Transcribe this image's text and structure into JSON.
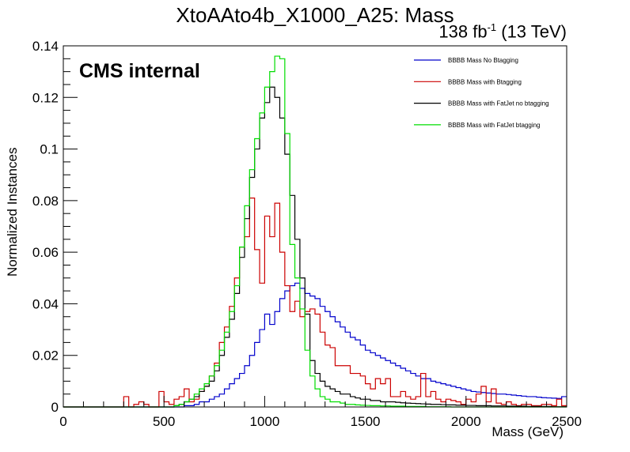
{
  "chart_data": {
    "type": "line",
    "title": "XtoAAto4b_X1000_A25: Mass",
    "lumi": {
      "value": "138 fb",
      "exp": "-1",
      "suffix": "(13 TeV)"
    },
    "label": "CMS internal",
    "xlabel": "Mass (GeV)",
    "ylabel": "Normalized Instances",
    "xlim": [
      0,
      2500
    ],
    "ylim": [
      0,
      0.14
    ],
    "xticks": [
      0,
      500,
      1000,
      1500,
      2000,
      2500
    ],
    "yticks": [
      0,
      0.02,
      0.04,
      0.06,
      0.08,
      0.1,
      0.12,
      0.14
    ],
    "ytick_labels": [
      "0",
      "0.02",
      "0.04",
      "0.06",
      "0.08",
      "0.1",
      "0.12",
      "0.14"
    ],
    "bin_width": 25,
    "x_start": 0,
    "series": [
      {
        "name": "BBBB Mass No Btagging",
        "color": "#0000cc",
        "values": [
          0,
          0,
          0,
          0,
          0,
          0,
          0,
          0,
          0,
          0,
          0,
          0,
          0,
          0,
          0,
          0,
          0,
          0,
          0,
          0,
          0,
          0,
          0,
          0,
          0.0005,
          0.0005,
          0.001,
          0.002,
          0.002,
          0.003,
          0.004,
          0.005,
          0.007,
          0.009,
          0.011,
          0.013,
          0.016,
          0.02,
          0.025,
          0.03,
          0.036,
          0.032,
          0.037,
          0.042,
          0.045,
          0.047,
          0.048,
          0.046,
          0.044,
          0.043,
          0.042,
          0.039,
          0.037,
          0.035,
          0.033,
          0.031,
          0.029,
          0.027,
          0.026,
          0.024,
          0.022,
          0.021,
          0.02,
          0.019,
          0.018,
          0.017,
          0.016,
          0.015,
          0.014,
          0.013,
          0.012,
          0.011,
          0.011,
          0.01,
          0.0095,
          0.009,
          0.0085,
          0.008,
          0.0075,
          0.007,
          0.0065,
          0.006,
          0.0058,
          0.0056,
          0.0054,
          0.0052,
          0.005,
          0.005,
          0.0048,
          0.0046,
          0.0044,
          0.0042,
          0.004,
          0.004,
          0.0038,
          0.0036,
          0.0035,
          0.0034,
          0.0033,
          0.004
        ]
      },
      {
        "name": "BBBB Mass with Btagging",
        "color": "#cc0000",
        "values": [
          0,
          0,
          0,
          0,
          0,
          0,
          0,
          0,
          0,
          0,
          0,
          0,
          0.004,
          0,
          0.001,
          0.002,
          0.001,
          0,
          0,
          0.006,
          0.002,
          0.001,
          0.003,
          0.004,
          0.007,
          0.002,
          0.003,
          0.006,
          0.008,
          0.012,
          0.017,
          0.025,
          0.031,
          0.039,
          0.05,
          0.062,
          0.066,
          0.081,
          0.061,
          0.048,
          0.074,
          0.066,
          0.079,
          0.06,
          0.047,
          0.037,
          0.041,
          0.035,
          0.037,
          0.038,
          0.036,
          0.029,
          0.024,
          0.023,
          0.016,
          0.016,
          0.016,
          0.013,
          0.013,
          0.012,
          0.009,
          0.007,
          0.011,
          0.009,
          0.011,
          0.004,
          0.004,
          0.006,
          0.004,
          0.003,
          0.004,
          0.013,
          0.004,
          0.006,
          0.003,
          0.002,
          0.003,
          0.0025,
          0.002,
          0.001,
          0.003,
          0.002,
          0.005,
          0.008,
          0.002,
          0.007,
          0.0015,
          0.001,
          0.002,
          0.001,
          0.0005,
          0.001,
          0.001,
          0.0005,
          0.0005,
          0.001,
          0.001,
          0.0005,
          0.003,
          0.0005
        ]
      },
      {
        "name": "BBBB Mass with FatJet no btagging",
        "color": "#000000",
        "values": [
          0,
          0,
          0,
          0,
          0,
          0,
          0,
          0,
          0,
          0,
          0,
          0,
          0,
          0,
          0,
          0,
          0,
          0,
          0,
          0,
          0,
          0,
          0.0005,
          0.001,
          0.002,
          0.003,
          0.004,
          0.006,
          0.008,
          0.01,
          0.014,
          0.02,
          0.027,
          0.034,
          0.044,
          0.058,
          0.073,
          0.089,
          0.1,
          0.112,
          0.118,
          0.124,
          0.12,
          0.112,
          0.098,
          0.082,
          0.065,
          0.05,
          0.036,
          0.018,
          0.013,
          0.01,
          0.008,
          0.007,
          0.006,
          0.005,
          0.005,
          0.004,
          0.0035,
          0.003,
          0.003,
          0.0025,
          0.0025,
          0.002,
          0.002,
          0.002,
          0.0018,
          0.0016,
          0.0015,
          0.0014,
          0.0013,
          0.0012,
          0.0011,
          0.001,
          0.001,
          0.0009,
          0.0008,
          0.0008,
          0.0007,
          0.0007,
          0.0006,
          0.0006,
          0.0005,
          0.0005,
          0.0005,
          0.0004,
          0.0004,
          0.0004,
          0.0003,
          0.0003,
          0.0003,
          0.0003,
          0.0002,
          0.0002,
          0.0002,
          0.0002,
          0.0002,
          0.0001,
          0.0001,
          0.0001
        ]
      },
      {
        "name": "BBBB Mass with FatJet btagging",
        "color": "#00dd00",
        "values": [
          0,
          0,
          0,
          0,
          0,
          0,
          0,
          0,
          0,
          0,
          0,
          0,
          0,
          0,
          0,
          0,
          0,
          0,
          0,
          0,
          0,
          0,
          0.0005,
          0.001,
          0.002,
          0.003,
          0.005,
          0.007,
          0.009,
          0.012,
          0.016,
          0.022,
          0.029,
          0.037,
          0.047,
          0.062,
          0.078,
          0.092,
          0.104,
          0.114,
          0.124,
          0.13,
          0.136,
          0.135,
          0.106,
          0.063,
          0.05,
          0.038,
          0.022,
          0.012,
          0.007,
          0.004,
          0.003,
          0.002,
          0.002,
          0.0015,
          0.001,
          0.001,
          0.0008,
          0.0007,
          0.0006,
          0.0005,
          0.0005,
          0.0004,
          0.0004,
          0.0003,
          0.0003,
          0.0003,
          0.0002,
          0.0002,
          0.0002,
          0.0002,
          0.0001,
          0.0001,
          0.0001,
          0.0001,
          0.0001,
          0,
          0,
          0,
          0,
          0,
          0,
          0,
          0,
          0,
          0,
          0,
          0,
          0,
          0,
          0,
          0,
          0,
          0,
          0,
          0,
          0,
          0,
          0
        ]
      }
    ],
    "legend_placement": "top-right",
    "grid": false
  }
}
